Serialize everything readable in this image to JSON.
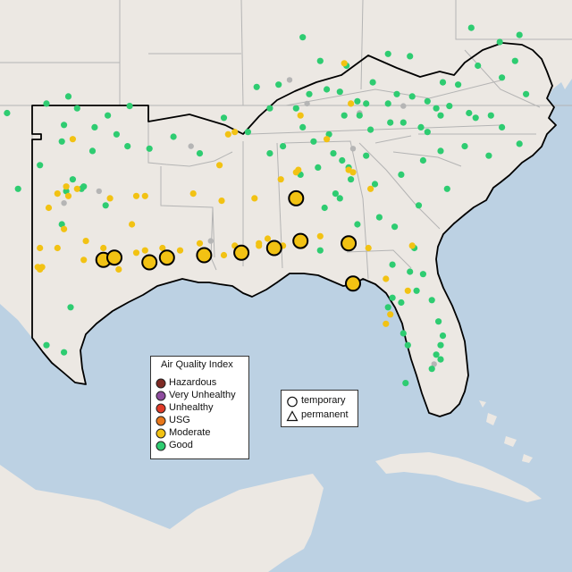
{
  "colors": {
    "ocean": "#bcd1e3",
    "land": "#ece8e3",
    "border_light": "#b4b4b4",
    "region_outline": "#000000",
    "Hazardous": "#7e2a24",
    "Very Unhealthy": "#8e4c9e",
    "Unhealthy": "#e03a28",
    "USG": "#e8771a",
    "Moderate": "#f2c213",
    "Good": "#2ecc71",
    "gray_monitor": "#b5b5b5"
  },
  "legend": {
    "title": "Air Quality Index",
    "categories": [
      {
        "label": "Hazardous",
        "color": "#7e2a24"
      },
      {
        "label": "Very Unhealthy",
        "color": "#8e4c9e"
      },
      {
        "label": "Unhealthy",
        "color": "#e03a28"
      },
      {
        "label": "USG",
        "color": "#e8771a"
      },
      {
        "label": "Moderate",
        "color": "#f2c213"
      },
      {
        "label": "Good",
        "color": "#2ecc71"
      }
    ]
  },
  "monitor_type_legend": {
    "temporary": "temporary",
    "permanent": "permanent"
  },
  "monitors": {
    "good": [
      [
        -96.8,
        36.2
      ],
      [
        -97.4,
        35.5
      ],
      [
        -96.0,
        35.4
      ],
      [
        -95.4,
        35.9
      ],
      [
        -97.5,
        34.8
      ],
      [
        -96.1,
        34.4
      ],
      [
        -95.0,
        35.1
      ],
      [
        -94.5,
        34.6
      ],
      [
        -97.0,
        33.2
      ],
      [
        -96.5,
        32.9
      ],
      [
        -96.6,
        32.8
      ],
      [
        -97.3,
        32.7
      ],
      [
        -95.5,
        32.1
      ],
      [
        -98.5,
        33.8
      ],
      [
        -101.8,
        35.3
      ],
      [
        -100.9,
        34.6
      ],
      [
        -97.2,
        36.7
      ],
      [
        -100.0,
        36.0
      ],
      [
        -98.2,
        36.4
      ],
      [
        -94.4,
        36.3
      ],
      [
        -92.4,
        35.0
      ],
      [
        -93.5,
        34.5
      ],
      [
        -91.2,
        34.3
      ],
      [
        -97.5,
        31.3
      ],
      [
        -99.5,
        32.8
      ],
      [
        -97.1,
        27.8
      ],
      [
        -98.2,
        26.2
      ],
      [
        -97.4,
        25.9
      ],
      [
        -90.1,
        35.8
      ],
      [
        -89.0,
        35.2
      ],
      [
        -88.0,
        36.2
      ],
      [
        -86.8,
        36.2
      ],
      [
        -86.5,
        35.4
      ],
      [
        -85.3,
        35.1
      ],
      [
        -84.6,
        35.9
      ],
      [
        -83.9,
        35.9
      ],
      [
        -84.0,
        36.5
      ],
      [
        -82.6,
        36.4
      ],
      [
        -81.9,
        35.6
      ],
      [
        -82.5,
        35.6
      ],
      [
        -83.4,
        35.3
      ],
      [
        -80.8,
        35.2
      ],
      [
        -80.2,
        35.9
      ],
      [
        -78.6,
        35.8
      ],
      [
        -77.4,
        35.4
      ],
      [
        -76.3,
        36.8
      ],
      [
        -77.4,
        37.5
      ],
      [
        -79.4,
        37.2
      ],
      [
        -80.1,
        37.3
      ],
      [
        -78.5,
        38.0
      ],
      [
        -76.8,
        38.2
      ],
      [
        -77.5,
        39.0
      ],
      [
        -76.6,
        39.3
      ],
      [
        -78.8,
        39.6
      ],
      [
        -81.6,
        38.4
      ],
      [
        -82.6,
        38.5
      ],
      [
        -84.5,
        38.0
      ],
      [
        -85.7,
        38.2
      ],
      [
        -86.5,
        39.2
      ],
      [
        -85.4,
        37.0
      ],
      [
        -83.3,
        37.3
      ],
      [
        -87.6,
        37.2
      ],
      [
        -88.6,
        37.1
      ],
      [
        -87.4,
        34.6
      ],
      [
        -86.6,
        33.4
      ],
      [
        -85.8,
        33.7
      ],
      [
        -84.4,
        33.7
      ],
      [
        -83.6,
        34.2
      ],
      [
        -85.1,
        34.3
      ],
      [
        -84.3,
        33.2
      ],
      [
        -83.2,
        33.0
      ],
      [
        -82.0,
        33.4
      ],
      [
        -81.0,
        34.0
      ],
      [
        -79.9,
        32.8
      ],
      [
        -81.2,
        32.1
      ],
      [
        -80.2,
        34.4
      ],
      [
        -79.1,
        34.6
      ],
      [
        -78.0,
        34.2
      ],
      [
        -76.6,
        34.7
      ],
      [
        -81.1,
        35.4
      ],
      [
        -81.4,
        30.3
      ],
      [
        -82.4,
        29.6
      ],
      [
        -81.6,
        29.3
      ],
      [
        -81.0,
        29.2
      ],
      [
        -81.3,
        28.5
      ],
      [
        -82.0,
        28.0
      ],
      [
        -80.6,
        28.1
      ],
      [
        -82.6,
        27.8
      ],
      [
        -80.3,
        27.2
      ],
      [
        -80.2,
        26.2
      ],
      [
        -80.4,
        25.8
      ],
      [
        -80.2,
        25.6
      ],
      [
        -80.6,
        25.2
      ],
      [
        -81.7,
        26.2
      ],
      [
        -81.9,
        26.7
      ],
      [
        -82.4,
        28.2
      ],
      [
        -84.3,
        30.5
      ],
      [
        -85.7,
        30.2
      ],
      [
        -84.0,
        31.3
      ],
      [
        -83.0,
        31.6
      ],
      [
        -82.3,
        31.2
      ],
      [
        -85.0,
        32.6
      ],
      [
        -84.8,
        32.4
      ],
      [
        -88.0,
        34.3
      ],
      [
        -86.0,
        34.8
      ],
      [
        -84.8,
        36.9
      ],
      [
        -86.2,
        36.8
      ],
      [
        -83.6,
        36.4
      ],
      [
        -82.2,
        36.8
      ],
      [
        -80.4,
        36.2
      ],
      [
        -81.5,
        36.7
      ],
      [
        -79.8,
        36.3
      ],
      [
        -78.9,
        36.0
      ],
      [
        -77.9,
        35.9
      ],
      [
        -80.8,
        36.5
      ],
      [
        -84.7,
        34.0
      ],
      [
        -85.5,
        32.0
      ],
      [
        -80.1,
        26.6
      ],
      [
        -81.8,
        24.6
      ]
    ],
    "moderate": [
      [
        -95.3,
        29.7
      ],
      [
        -95.0,
        29.9
      ],
      [
        -94.9,
        29.4
      ],
      [
        -95.6,
        29.9
      ],
      [
        -96.5,
        29.8
      ],
      [
        -95.6,
        30.3
      ],
      [
        -94.1,
        30.1
      ],
      [
        -93.7,
        30.2
      ],
      [
        -92.9,
        30.3
      ],
      [
        -92.1,
        30.2
      ],
      [
        -91.2,
        30.5
      ],
      [
        -90.1,
        30.0
      ],
      [
        -89.6,
        30.4
      ],
      [
        -88.5,
        30.4
      ],
      [
        -88.1,
        30.7
      ],
      [
        -87.4,
        30.4
      ],
      [
        -86.5,
        30.4
      ],
      [
        -85.7,
        30.8
      ],
      [
        -84.3,
        30.4
      ],
      [
        -83.5,
        30.3
      ],
      [
        -82.7,
        29.0
      ],
      [
        -82.5,
        27.5
      ],
      [
        -82.7,
        27.1
      ],
      [
        -81.7,
        28.5
      ],
      [
        -81.5,
        30.4
      ],
      [
        -98.5,
        29.4
      ],
      [
        -98.6,
        29.5
      ],
      [
        -98.4,
        29.5
      ],
      [
        -97.7,
        30.3
      ],
      [
        -97.4,
        31.1
      ],
      [
        -96.4,
        30.6
      ],
      [
        -97.7,
        32.6
      ],
      [
        -96.8,
        32.8
      ],
      [
        -97.3,
        32.9
      ],
      [
        -95.3,
        32.4
      ],
      [
        -94.1,
        32.5
      ],
      [
        -93.7,
        32.5
      ],
      [
        -91.5,
        32.6
      ],
      [
        -90.2,
        32.3
      ],
      [
        -88.7,
        32.4
      ],
      [
        -87.5,
        33.2
      ],
      [
        -86.8,
        33.5
      ],
      [
        -86.7,
        33.6
      ],
      [
        -84.4,
        33.6
      ],
      [
        -84.2,
        33.5
      ],
      [
        -83.4,
        32.8
      ],
      [
        -85.4,
        34.9
      ],
      [
        -86.6,
        35.9
      ],
      [
        -89.9,
        35.1
      ],
      [
        -89.6,
        35.2
      ],
      [
        -84.3,
        36.4
      ],
      [
        -84.6,
        38.1
      ],
      [
        -104.3,
        32.4
      ],
      [
        -103.5,
        28.5
      ],
      [
        -100.9,
        31.6
      ],
      [
        -97.0,
        34.9
      ],
      [
        -90.3,
        33.8
      ],
      [
        -88.5,
        30.5
      ],
      [
        -98.5,
        30.3
      ],
      [
        -97.2,
        32.5
      ],
      [
        -98.1,
        32.0
      ],
      [
        -94.3,
        31.3
      ]
    ],
    "gray": [
      [
        -95.8,
        32.7
      ],
      [
        -97.4,
        32.2
      ],
      [
        -91.6,
        34.6
      ],
      [
        -84.2,
        34.5
      ],
      [
        -81.9,
        36.3
      ],
      [
        -83.9,
        36.0
      ],
      [
        -90.7,
        30.6
      ],
      [
        -86.3,
        36.4
      ],
      [
        -80.5,
        25.4
      ],
      [
        -87.1,
        37.4
      ]
    ],
    "temporary_moderate": [
      [
        -95.6,
        29.8
      ],
      [
        -95.1,
        29.9
      ],
      [
        -93.5,
        29.7
      ],
      [
        -92.7,
        29.9
      ],
      [
        -91.0,
        30.0
      ],
      [
        -89.3,
        30.1
      ],
      [
        -87.8,
        30.3
      ],
      [
        -86.6,
        30.6
      ],
      [
        -86.8,
        32.4
      ],
      [
        -84.4,
        30.5
      ],
      [
        -84.2,
        28.8
      ]
    ]
  }
}
